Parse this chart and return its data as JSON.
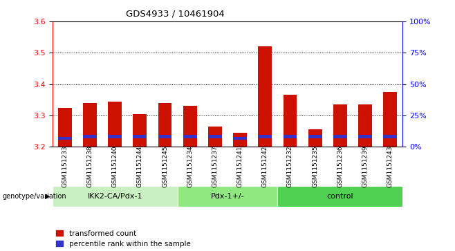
{
  "title": "GDS4933 / 10461904",
  "samples": [
    "GSM1151233",
    "GSM1151238",
    "GSM1151240",
    "GSM1151244",
    "GSM1151245",
    "GSM1151234",
    "GSM1151237",
    "GSM1151241",
    "GSM1151242",
    "GSM1151232",
    "GSM1151235",
    "GSM1151236",
    "GSM1151239",
    "GSM1151243"
  ],
  "red_top": [
    3.325,
    3.34,
    3.345,
    3.305,
    3.34,
    3.33,
    3.265,
    3.245,
    3.52,
    3.365,
    3.255,
    3.335,
    3.335,
    3.375
  ],
  "blue_bottom": [
    3.222,
    3.228,
    3.228,
    3.228,
    3.228,
    3.228,
    3.228,
    3.222,
    3.228,
    3.228,
    3.228,
    3.228,
    3.228,
    3.228
  ],
  "blue_top": [
    3.232,
    3.238,
    3.238,
    3.238,
    3.238,
    3.238,
    3.238,
    3.232,
    3.238,
    3.238,
    3.238,
    3.238,
    3.238,
    3.238
  ],
  "baseline": 3.2,
  "ylim": [
    3.2,
    3.6
  ],
  "yticks_left": [
    3.2,
    3.3,
    3.4,
    3.5,
    3.6
  ],
  "yticks_right": [
    0,
    25,
    50,
    75,
    100
  ],
  "groups": [
    {
      "label": "IKK2-CA/Pdx-1",
      "start": 0,
      "end": 5,
      "color": "#c8f0c0"
    },
    {
      "label": "Pdx-1+/-",
      "start": 5,
      "end": 9,
      "color": "#90e880"
    },
    {
      "label": "control",
      "start": 9,
      "end": 14,
      "color": "#50d050"
    }
  ],
  "group_label_prefix": "genotype/variation",
  "legend_red": "transformed count",
  "legend_blue": "percentile rank within the sample",
  "bar_width": 0.55,
  "red_color": "#cc1100",
  "blue_color": "#3333cc",
  "bg_color": "#ffffff",
  "tick_bg": "#d0d0d0"
}
